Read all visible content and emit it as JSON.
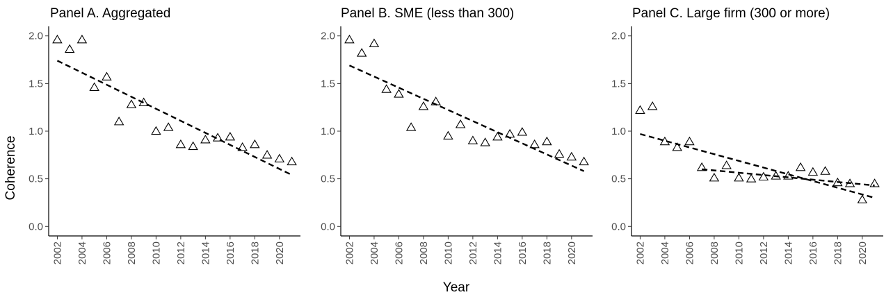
{
  "figure": {
    "ylabel": "Coherence",
    "xlabel": "Year"
  },
  "chart_data": [
    {
      "type": "scatter",
      "title": "Panel A. Aggregated",
      "xlim": [
        2001.3,
        2021.7
      ],
      "ylim": [
        -0.1,
        2.1
      ],
      "x_ticks": [
        2002,
        2004,
        2006,
        2008,
        2010,
        2012,
        2014,
        2016,
        2018,
        2020
      ],
      "y_ticks": [
        "0.0",
        "0.5",
        "1.0",
        "1.5",
        "2.0"
      ],
      "grid": false,
      "points": {
        "x": [
          2002,
          2003,
          2004,
          2005,
          2006,
          2007,
          2008,
          2009,
          2010,
          2011,
          2012,
          2013,
          2014,
          2015,
          2016,
          2017,
          2018,
          2019,
          2020,
          2021
        ],
        "y": [
          1.96,
          1.86,
          1.96,
          1.46,
          1.57,
          1.1,
          1.28,
          1.3,
          1.0,
          1.04,
          0.86,
          0.84,
          0.91,
          0.93,
          0.94,
          0.83,
          0.86,
          0.75,
          0.71,
          0.68
        ]
      },
      "trend_lines": [
        {
          "x": [
            2002,
            2021
          ],
          "y": [
            1.74,
            0.54
          ]
        }
      ]
    },
    {
      "type": "scatter",
      "title": "Panel B. SME (less than 300)",
      "xlim": [
        2001.3,
        2021.7
      ],
      "ylim": [
        -0.1,
        2.1
      ],
      "x_ticks": [
        2002,
        2004,
        2006,
        2008,
        2010,
        2012,
        2014,
        2016,
        2018,
        2020
      ],
      "y_ticks": [
        "0.0",
        "0.5",
        "1.0",
        "1.5",
        "2.0"
      ],
      "grid": false,
      "points": {
        "x": [
          2002,
          2003,
          2004,
          2005,
          2006,
          2007,
          2008,
          2009,
          2010,
          2011,
          2012,
          2013,
          2014,
          2015,
          2016,
          2017,
          2018,
          2019,
          2020,
          2021
        ],
        "y": [
          1.96,
          1.82,
          1.92,
          1.44,
          1.39,
          1.04,
          1.26,
          1.31,
          0.95,
          1.07,
          0.9,
          0.88,
          0.94,
          0.97,
          0.99,
          0.86,
          0.89,
          0.76,
          0.73,
          0.68
        ]
      },
      "trend_lines": [
        {
          "x": [
            2002,
            2021
          ],
          "y": [
            1.69,
            0.58
          ]
        }
      ]
    },
    {
      "type": "scatter",
      "title": "Panel C. Large firm (300 or more)",
      "xlim": [
        2001.3,
        2021.7
      ],
      "ylim": [
        -0.1,
        2.1
      ],
      "x_ticks": [
        2002,
        2004,
        2006,
        2008,
        2010,
        2012,
        2014,
        2016,
        2018,
        2020
      ],
      "y_ticks": [
        "0.0",
        "0.5",
        "1.0",
        "1.5",
        "2.0"
      ],
      "grid": false,
      "points": {
        "x": [
          2002,
          2003,
          2004,
          2005,
          2006,
          2007,
          2008,
          2009,
          2010,
          2011,
          2012,
          2013,
          2014,
          2015,
          2016,
          2017,
          2018,
          2019,
          2020,
          2021
        ],
        "y": [
          1.22,
          1.26,
          0.89,
          0.83,
          0.89,
          0.62,
          0.51,
          0.64,
          0.51,
          0.5,
          0.52,
          0.53,
          0.53,
          0.62,
          0.57,
          0.58,
          0.46,
          0.45,
          0.28,
          0.45
        ]
      },
      "trend_lines": [
        {
          "x": [
            2002,
            2021
          ],
          "y": [
            0.97,
            0.3
          ]
        },
        {
          "x": [
            2007,
            2021
          ],
          "y": [
            0.6,
            0.43
          ]
        }
      ]
    }
  ]
}
